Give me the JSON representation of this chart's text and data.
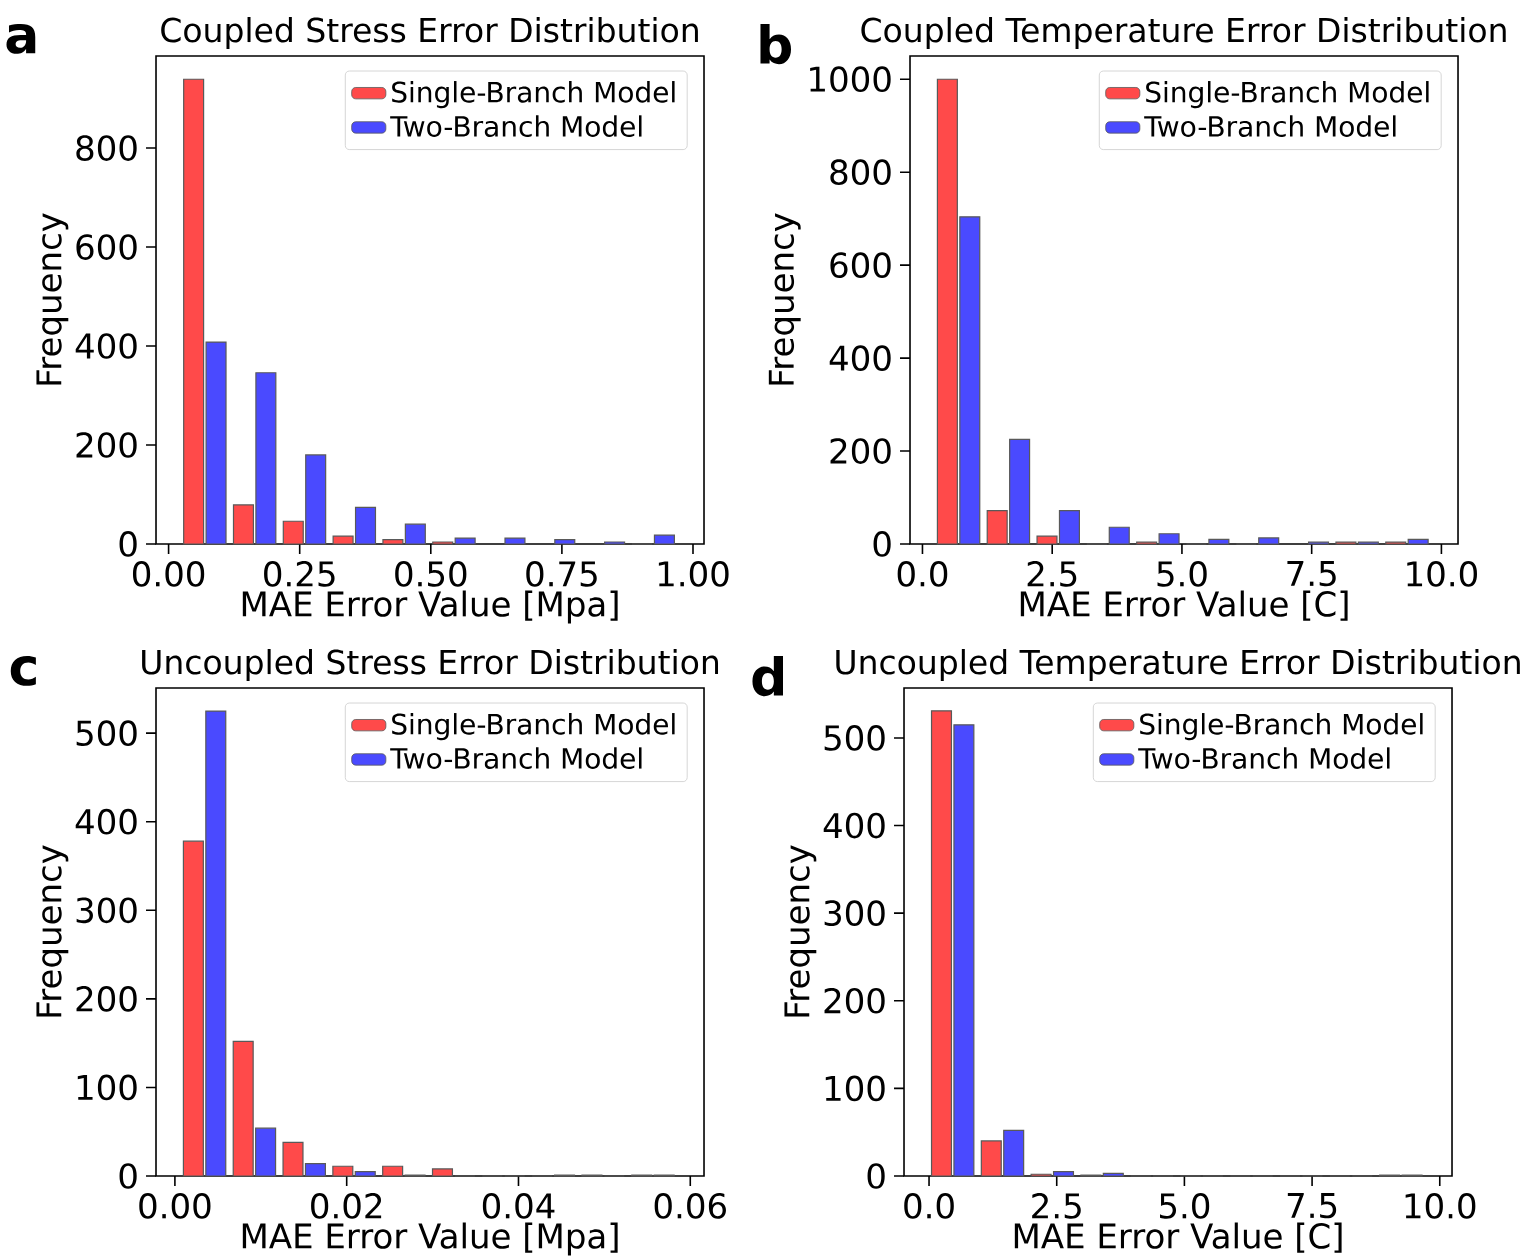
{
  "chart_data": [
    {
      "type": "histogram",
      "title": "Coupled Stress Error Distribution",
      "xlabel": "MAE Error Value [Mpa]",
      "ylabel": "Frequency",
      "annotations": [
        "a"
      ],
      "bins": [
        0.024,
        0.119,
        0.214,
        0.309,
        0.404,
        0.499,
        0.594,
        0.689,
        0.784,
        0.879,
        0.974
      ],
      "series": [
        {
          "name": "Single-Branch Model",
          "color": "#ff4a4a",
          "values": [
            939,
            79,
            46,
            16,
            9,
            4,
            null,
            null,
            null,
            0
          ]
        },
        {
          "name": "Two-Branch Model",
          "color": "#4a4aff",
          "values": [
            408,
            346,
            180,
            74,
            40,
            12,
            12,
            9,
            4,
            18
          ]
        }
      ],
      "xlim": [
        -0.024,
        1.021
      ],
      "ylim": [
        0,
        986
      ],
      "xticks": [
        {
          "value": 0,
          "label": "0.00"
        },
        {
          "value": 0.25,
          "label": "0.25"
        },
        {
          "value": 0.5,
          "label": "0.50"
        },
        {
          "value": 0.75,
          "label": "0.75"
        },
        {
          "value": 1,
          "label": "1.00"
        }
      ],
      "yticks": [
        0,
        200,
        400,
        600,
        800
      ],
      "legend": "top right"
    },
    {
      "type": "histogram",
      "title": "Coupled Temperature Error Distribution",
      "xlabel": "MAE Error Value [C]",
      "ylabel": "Frequency",
      "annotations": [
        "b"
      ],
      "bins": [
        0.24,
        1.2,
        2.16,
        3.12,
        4.08,
        5.04,
        6.0,
        6.96,
        7.92,
        8.88,
        9.84
      ],
      "series": [
        {
          "name": "Single-Branch Model",
          "color": "#ff4a4a",
          "values": [
            1000,
            72,
            17,
            0,
            4,
            0,
            0,
            null,
            4,
            4
          ]
        },
        {
          "name": "Two-Branch Model",
          "color": "#4a4aff",
          "values": [
            704,
            225,
            72,
            36,
            22,
            10,
            13,
            4,
            4,
            10
          ]
        }
      ],
      "xlim": [
        -0.24,
        10.32
      ],
      "ylim": [
        0,
        1050
      ],
      "xticks": [
        {
          "value": 0,
          "label": "0.0"
        },
        {
          "value": 2.5,
          "label": "2.5"
        },
        {
          "value": 5,
          "label": "5.0"
        },
        {
          "value": 7.5,
          "label": "7.5"
        },
        {
          "value": 10,
          "label": "10.0"
        }
      ],
      "yticks": [
        0,
        200,
        400,
        600,
        800,
        1000
      ],
      "legend": "top right"
    },
    {
      "type": "histogram",
      "title": "Uncoupled Stress Error Distribution",
      "xlabel": "MAE Error Value [Mpa]",
      "ylabel": "Frequency",
      "annotations": [
        "c"
      ],
      "bins": [
        0.0007,
        0.0065,
        0.0123,
        0.0181,
        0.0239,
        0.0297,
        0.0355,
        0.0413,
        0.0471,
        0.0529,
        0.0587
      ],
      "series": [
        {
          "name": "Single-Branch Model",
          "color": "#ff4a4a",
          "values": [
            378,
            152,
            38,
            11,
            11,
            8,
            0,
            0,
            1,
            1
          ]
        },
        {
          "name": "Two-Branch Model",
          "color": "#4a4aff",
          "values": [
            525,
            54,
            14,
            5,
            1,
            0,
            0,
            1,
            0,
            1
          ]
        }
      ],
      "xlim": [
        -0.0022,
        0.0616
      ],
      "ylim": [
        0,
        551
      ],
      "xticks": [
        {
          "value": 0,
          "label": "0.00"
        },
        {
          "value": 0.02,
          "label": "0.02"
        },
        {
          "value": 0.04,
          "label": "0.04"
        },
        {
          "value": 0.06,
          "label": "0.06"
        }
      ],
      "yticks": [
        0,
        100,
        200,
        300,
        400,
        500
      ],
      "legend": "top right"
    },
    {
      "type": "histogram",
      "title": "Uncoupled Temperature Error Distribution",
      "xlabel": "MAE Error Value [C]",
      "ylabel": "Frequency",
      "annotations": [
        "d"
      ],
      "bins": [
        0,
        0.975,
        1.95,
        2.925,
        3.9,
        4.875,
        5.85,
        6.825,
        7.8,
        8.775,
        9.75
      ],
      "series": [
        {
          "name": "Single-Branch Model",
          "color": "#ff4a4a",
          "values": [
            531,
            40,
            2,
            1,
            0,
            0,
            0,
            0,
            0,
            1
          ]
        },
        {
          "name": "Two-Branch Model",
          "color": "#4a4aff",
          "values": [
            515,
            52,
            5,
            3,
            0,
            0,
            0,
            0,
            0,
            1
          ]
        }
      ],
      "xlim": [
        -0.49,
        10.24
      ],
      "ylim": [
        0,
        557
      ],
      "xticks": [
        {
          "value": 0,
          "label": "0.0"
        },
        {
          "value": 2.5,
          "label": "2.5"
        },
        {
          "value": 5,
          "label": "5.0"
        },
        {
          "value": 7.5,
          "label": "7.5"
        },
        {
          "value": 10,
          "label": "10.0"
        }
      ],
      "yticks": [
        0,
        100,
        200,
        300,
        400,
        500
      ],
      "legend": "top right"
    }
  ]
}
